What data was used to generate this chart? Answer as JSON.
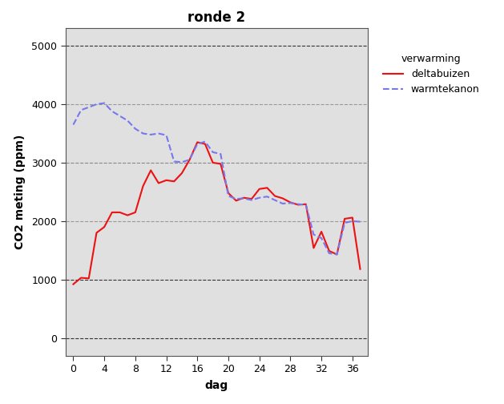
{
  "title": "ronde 2",
  "xlabel": "dag",
  "ylabel": "CO2 meting (ppm)",
  "legend_title": "verwarming",
  "legend_labels": [
    "deltabuizen",
    "warmtekanon"
  ],
  "xlim": [
    -1,
    38
  ],
  "ylim": [
    -300,
    5300
  ],
  "xticks": [
    0,
    4,
    8,
    12,
    16,
    20,
    24,
    28,
    32,
    36
  ],
  "yticks": [
    0,
    1000,
    2000,
    3000,
    4000,
    5000
  ],
  "plot_bg_color": "#E0E0E0",
  "fig_bg_color": "#FFFFFF",
  "deltabuizen_x": [
    0,
    1,
    2,
    3,
    4,
    5,
    6,
    7,
    8,
    9,
    10,
    11,
    12,
    13,
    14,
    15,
    16,
    17,
    18,
    19,
    20,
    21,
    22,
    23,
    24,
    25,
    26,
    27,
    28,
    29,
    30,
    31,
    32,
    33,
    34,
    35,
    36,
    37
  ],
  "deltabuizen_y": [
    920,
    1030,
    1020,
    1800,
    1900,
    2150,
    2150,
    2100,
    2150,
    2600,
    2870,
    2650,
    2700,
    2680,
    2820,
    3050,
    3350,
    3320,
    3000,
    2980,
    2480,
    2350,
    2400,
    2380,
    2550,
    2570,
    2430,
    2390,
    2320,
    2280,
    2290,
    1540,
    1820,
    1490,
    1430,
    2040,
    2060,
    1180
  ],
  "warmtekanon_x": [
    0,
    1,
    2,
    3,
    4,
    5,
    6,
    7,
    8,
    9,
    10,
    11,
    12,
    13,
    14,
    15,
    16,
    17,
    18,
    19,
    20,
    21,
    22,
    23,
    24,
    25,
    26,
    27,
    28,
    29,
    30,
    31,
    32,
    33,
    34,
    35,
    36,
    37
  ],
  "warmtekanon_y": [
    3650,
    3900,
    3950,
    4000,
    4020,
    3880,
    3800,
    3720,
    3580,
    3500,
    3480,
    3500,
    3470,
    3020,
    3010,
    3050,
    3320,
    3360,
    3180,
    3150,
    2430,
    2380,
    2390,
    2360,
    2400,
    2420,
    2360,
    2300,
    2310,
    2290,
    2280,
    1770,
    1710,
    1450,
    1430,
    1970,
    2000,
    1990
  ],
  "line_color_delta": "#EE1111",
  "line_color_warm": "#7777EE",
  "line_width": 1.5,
  "title_fontsize": 12,
  "axis_label_fontsize": 10,
  "tick_fontsize": 9,
  "legend_fontsize": 9,
  "grid_color_dark": "#333333",
  "grid_color_medium": "#888888",
  "grid_color_light": "#999999"
}
